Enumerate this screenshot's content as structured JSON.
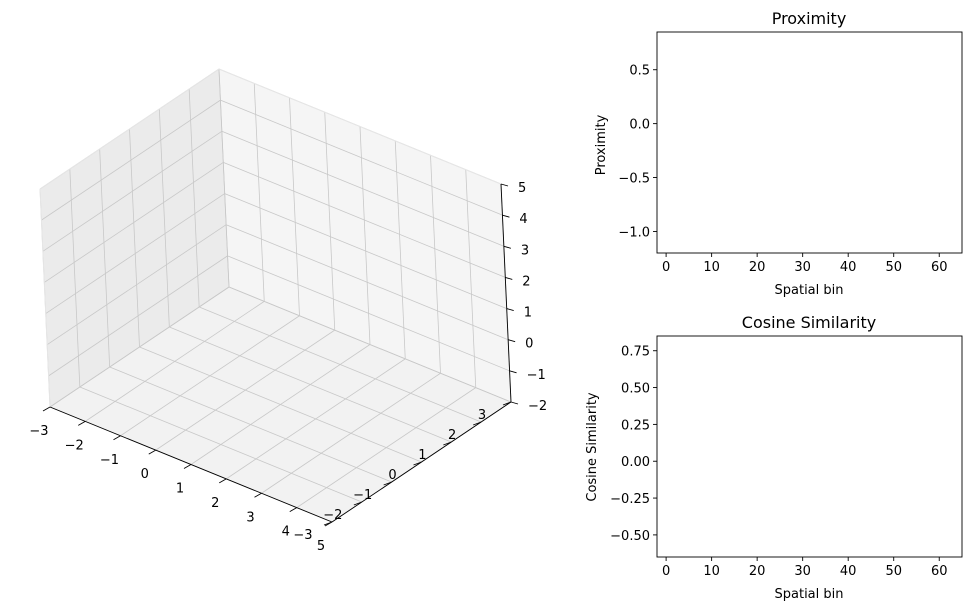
{
  "chart_data": [
    {
      "type": "scatter",
      "projection": "3d",
      "title": "",
      "xlabel": "",
      "ylabel": "",
      "zlabel": "",
      "xlim": [
        -3,
        5
      ],
      "ylim": [
        -3,
        3
      ],
      "zlim": [
        -2,
        5
      ],
      "xticks": [
        "−3",
        "−2",
        "−1",
        "0",
        "1",
        "2",
        "3",
        "4",
        "5"
      ],
      "yticks": [
        "−3",
        "−2",
        "−1",
        "0",
        "1",
        "2",
        "3"
      ],
      "zticks": [
        "−2",
        "−1",
        "0",
        "1",
        "2",
        "3",
        "4",
        "5"
      ],
      "series": [],
      "grid": true
    },
    {
      "type": "line",
      "title": "Proximity",
      "xlabel": "Spatial bin",
      "ylabel": "Proximity",
      "xlim": [
        -2,
        65
      ],
      "ylim": [
        -1.2,
        0.85
      ],
      "xticks": [
        "0",
        "10",
        "20",
        "30",
        "40",
        "50",
        "60"
      ],
      "yticks": [
        "−1.0",
        "−0.5",
        "0.0",
        "0.5"
      ],
      "series": [],
      "grid": false
    },
    {
      "type": "line",
      "title": "Cosine Similarity",
      "xlabel": "Spatial bin",
      "ylabel": "Cosine Similarity",
      "xlim": [
        -2,
        65
      ],
      "ylim": [
        -0.65,
        0.85
      ],
      "xticks": [
        "0",
        "10",
        "20",
        "30",
        "40",
        "50",
        "60"
      ],
      "yticks": [
        "−0.50",
        "−0.25",
        "0.00",
        "0.25",
        "0.50",
        "0.75"
      ],
      "series": [],
      "grid": false
    }
  ]
}
